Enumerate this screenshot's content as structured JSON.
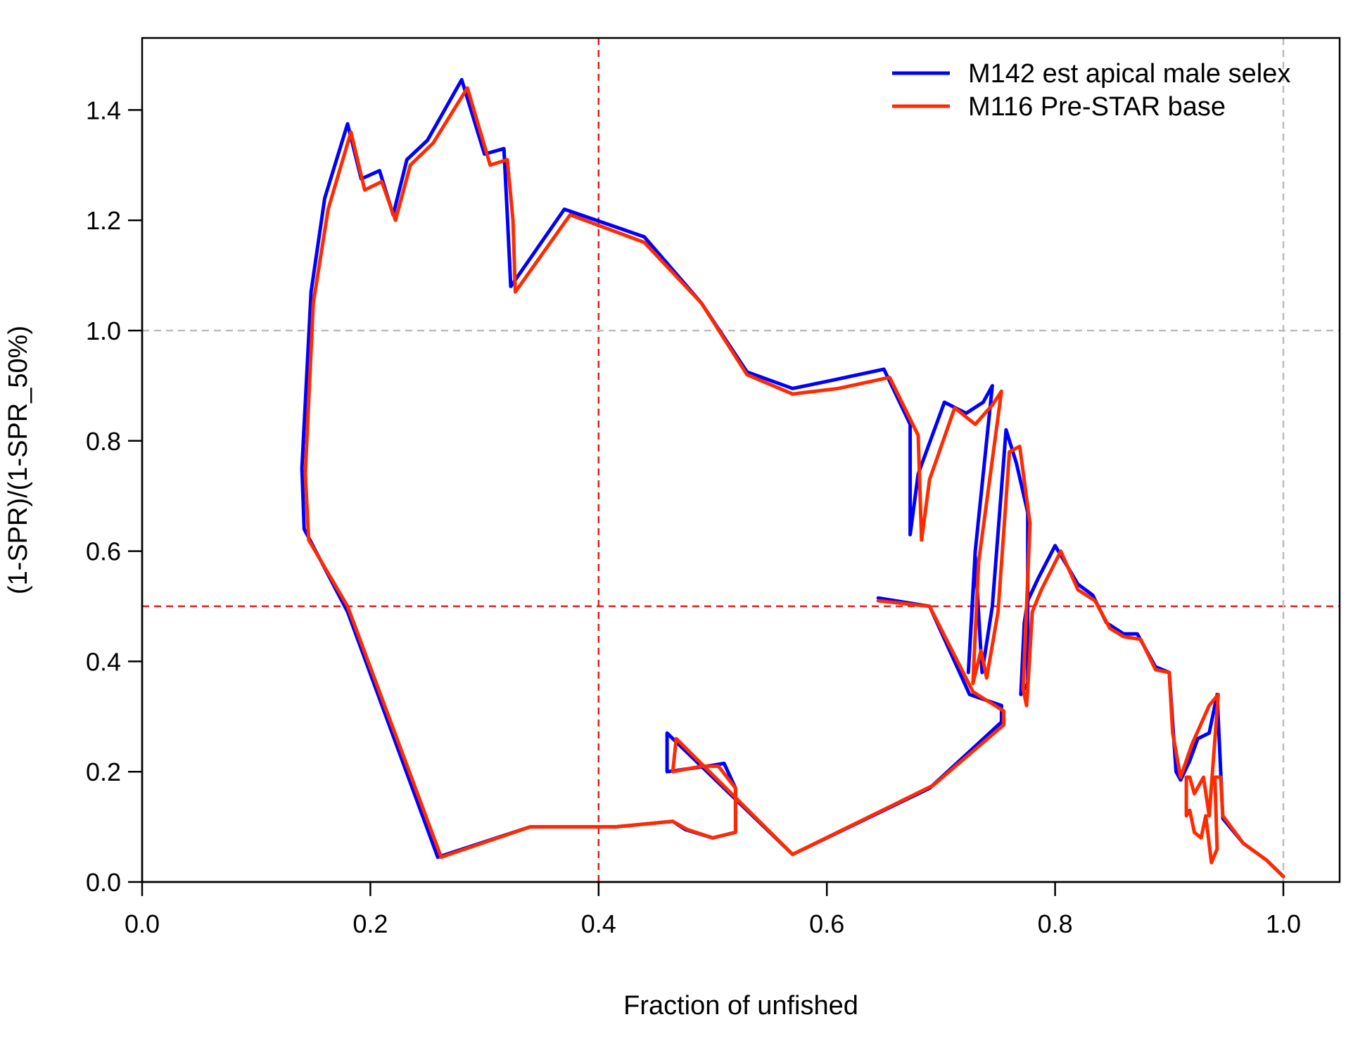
{
  "chart_data": {
    "type": "line",
    "title": "",
    "xlabel": "Fraction of unfished",
    "ylabel": "(1-SPR)/(1-SPR_50%)",
    "xlim": [
      0,
      1.05
    ],
    "ylim": [
      0,
      1.52
    ],
    "xticks": [
      0.0,
      0.2,
      0.4,
      0.6,
      0.8,
      1.0
    ],
    "xtick_labels": [
      "0.0",
      "0.2",
      "0.4",
      "0.6",
      "0.8",
      "1.0"
    ],
    "yticks": [
      0.0,
      0.2,
      0.4,
      0.6,
      0.8,
      1.0,
      1.2,
      1.4
    ],
    "ytick_labels": [
      "0.0",
      "0.2",
      "0.4",
      "0.6",
      "0.8",
      "1.0",
      "1.2",
      "1.4"
    ],
    "grid": false,
    "legend_position": "top-right",
    "reference_lines": [
      {
        "orientation": "vertical",
        "value": 0.4,
        "color": "#e31a1c",
        "style": "dashed"
      },
      {
        "orientation": "horizontal",
        "value": 0.5,
        "color": "#e31a1c",
        "style": "dashed"
      },
      {
        "orientation": "vertical",
        "value": 1.0,
        "color": "#bdbdbd",
        "style": "dashed"
      },
      {
        "orientation": "horizontal",
        "value": 1.0,
        "color": "#bdbdbd",
        "style": "dashed"
      }
    ],
    "series": [
      {
        "name": "M142 est apical male selex",
        "color": "#0000ff",
        "points": [
          [
            1.0,
            0.01
          ],
          [
            0.985,
            0.04
          ],
          [
            0.965,
            0.07
          ],
          [
            0.947,
            0.115
          ],
          [
            0.942,
            0.34
          ],
          [
            0.935,
            0.27
          ],
          [
            0.925,
            0.26
          ],
          [
            0.918,
            0.22
          ],
          [
            0.91,
            0.185
          ],
          [
            0.906,
            0.2
          ],
          [
            0.9,
            0.38
          ],
          [
            0.888,
            0.39
          ],
          [
            0.872,
            0.45
          ],
          [
            0.86,
            0.45
          ],
          [
            0.845,
            0.47
          ],
          [
            0.833,
            0.52
          ],
          [
            0.82,
            0.54
          ],
          [
            0.8,
            0.61
          ],
          [
            0.785,
            0.55
          ],
          [
            0.776,
            0.51
          ],
          [
            0.773,
            0.47
          ],
          [
            0.77,
            0.34
          ],
          [
            0.776,
            0.36
          ],
          [
            0.776,
            0.67
          ],
          [
            0.766,
            0.76
          ],
          [
            0.757,
            0.82
          ],
          [
            0.745,
            0.5
          ],
          [
            0.736,
            0.38
          ],
          [
            0.73,
            0.59
          ],
          [
            0.724,
            0.38
          ],
          [
            0.73,
            0.6
          ],
          [
            0.745,
            0.9
          ],
          [
            0.737,
            0.87
          ],
          [
            0.722,
            0.85
          ],
          [
            0.703,
            0.87
          ],
          [
            0.68,
            0.74
          ],
          [
            0.673,
            0.63
          ],
          [
            0.673,
            0.83
          ],
          [
            0.65,
            0.93
          ],
          [
            0.605,
            0.91
          ],
          [
            0.57,
            0.895
          ],
          [
            0.53,
            0.925
          ],
          [
            0.49,
            1.05
          ],
          [
            0.44,
            1.17
          ],
          [
            0.37,
            1.22
          ],
          [
            0.323,
            1.08
          ],
          [
            0.32,
            1.21
          ],
          [
            0.317,
            1.33
          ],
          [
            0.3,
            1.32
          ],
          [
            0.28,
            1.455
          ],
          [
            0.25,
            1.345
          ],
          [
            0.232,
            1.31
          ],
          [
            0.22,
            1.21
          ],
          [
            0.208,
            1.29
          ],
          [
            0.192,
            1.275
          ],
          [
            0.18,
            1.375
          ],
          [
            0.16,
            1.24
          ],
          [
            0.148,
            1.07
          ],
          [
            0.14,
            0.75
          ],
          [
            0.142,
            0.64
          ],
          [
            0.18,
            0.49
          ],
          [
            0.259,
            0.045
          ],
          [
            0.34,
            0.1
          ],
          [
            0.415,
            0.1
          ],
          [
            0.465,
            0.11
          ],
          [
            0.476,
            0.095
          ],
          [
            0.5,
            0.08
          ],
          [
            0.52,
            0.09
          ],
          [
            0.52,
            0.17
          ],
          [
            0.51,
            0.215
          ],
          [
            0.495,
            0.21
          ],
          [
            0.46,
            0.2
          ],
          [
            0.46,
            0.27
          ],
          [
            0.57,
            0.05
          ],
          [
            0.69,
            0.17
          ],
          [
            0.753,
            0.29
          ],
          [
            0.753,
            0.32
          ],
          [
            0.725,
            0.34
          ],
          [
            0.69,
            0.5
          ],
          [
            0.645,
            0.515
          ]
        ]
      },
      {
        "name": "M116 Pre-STAR base",
        "color": "#ff2b00",
        "points": [
          [
            1.0,
            0.01
          ],
          [
            0.985,
            0.04
          ],
          [
            0.965,
            0.07
          ],
          [
            0.947,
            0.12
          ],
          [
            0.945,
            0.19
          ],
          [
            0.94,
            0.19
          ],
          [
            0.942,
            0.06
          ],
          [
            0.937,
            0.035
          ],
          [
            0.932,
            0.12
          ],
          [
            0.928,
            0.08
          ],
          [
            0.922,
            0.09
          ],
          [
            0.918,
            0.13
          ],
          [
            0.915,
            0.12
          ],
          [
            0.915,
            0.19
          ],
          [
            0.918,
            0.19
          ],
          [
            0.922,
            0.16
          ],
          [
            0.93,
            0.19
          ],
          [
            0.935,
            0.12
          ],
          [
            0.943,
            0.34
          ],
          [
            0.935,
            0.32
          ],
          [
            0.92,
            0.25
          ],
          [
            0.91,
            0.19
          ],
          [
            0.903,
            0.27
          ],
          [
            0.9,
            0.38
          ],
          [
            0.888,
            0.385
          ],
          [
            0.875,
            0.44
          ],
          [
            0.86,
            0.445
          ],
          [
            0.848,
            0.46
          ],
          [
            0.835,
            0.51
          ],
          [
            0.82,
            0.53
          ],
          [
            0.805,
            0.6
          ],
          [
            0.788,
            0.53
          ],
          [
            0.78,
            0.49
          ],
          [
            0.776,
            0.35
          ],
          [
            0.775,
            0.32
          ],
          [
            0.772,
            0.35
          ],
          [
            0.778,
            0.65
          ],
          [
            0.769,
            0.79
          ],
          [
            0.76,
            0.78
          ],
          [
            0.75,
            0.49
          ],
          [
            0.74,
            0.37
          ],
          [
            0.735,
            0.42
          ],
          [
            0.728,
            0.36
          ],
          [
            0.733,
            0.58
          ],
          [
            0.753,
            0.89
          ],
          [
            0.745,
            0.865
          ],
          [
            0.73,
            0.83
          ],
          [
            0.712,
            0.86
          ],
          [
            0.69,
            0.73
          ],
          [
            0.683,
            0.62
          ],
          [
            0.68,
            0.81
          ],
          [
            0.655,
            0.915
          ],
          [
            0.61,
            0.895
          ],
          [
            0.57,
            0.885
          ],
          [
            0.53,
            0.92
          ],
          [
            0.49,
            1.05
          ],
          [
            0.44,
            1.16
          ],
          [
            0.375,
            1.21
          ],
          [
            0.327,
            1.07
          ],
          [
            0.325,
            1.2
          ],
          [
            0.32,
            1.31
          ],
          [
            0.305,
            1.3
          ],
          [
            0.285,
            1.44
          ],
          [
            0.255,
            1.34
          ],
          [
            0.235,
            1.3
          ],
          [
            0.222,
            1.2
          ],
          [
            0.21,
            1.27
          ],
          [
            0.195,
            1.255
          ],
          [
            0.183,
            1.36
          ],
          [
            0.163,
            1.22
          ],
          [
            0.15,
            1.05
          ],
          [
            0.143,
            0.74
          ],
          [
            0.146,
            0.62
          ],
          [
            0.18,
            0.5
          ],
          [
            0.262,
            0.045
          ],
          [
            0.34,
            0.1
          ],
          [
            0.415,
            0.1
          ],
          [
            0.465,
            0.11
          ],
          [
            0.478,
            0.095
          ],
          [
            0.5,
            0.08
          ],
          [
            0.52,
            0.09
          ],
          [
            0.52,
            0.17
          ],
          [
            0.505,
            0.21
          ],
          [
            0.49,
            0.21
          ],
          [
            0.465,
            0.2
          ],
          [
            0.468,
            0.26
          ],
          [
            0.57,
            0.05
          ],
          [
            0.693,
            0.175
          ],
          [
            0.755,
            0.285
          ],
          [
            0.755,
            0.31
          ],
          [
            0.728,
            0.345
          ],
          [
            0.69,
            0.5
          ],
          [
            0.645,
            0.51
          ]
        ]
      }
    ]
  }
}
